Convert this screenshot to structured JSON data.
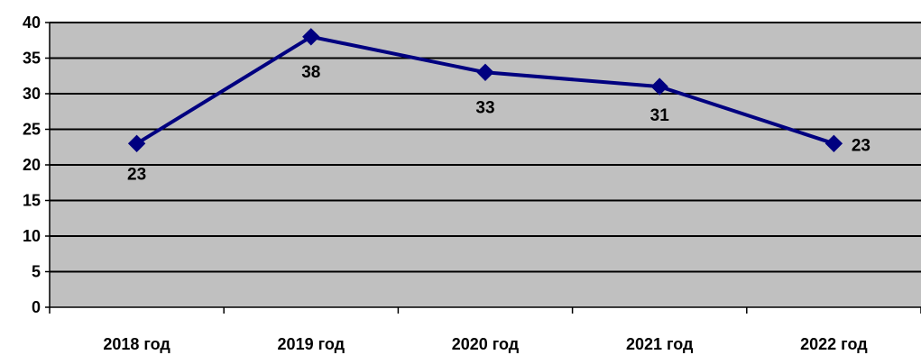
{
  "chart_data": {
    "type": "line",
    "title": "",
    "xlabel": "",
    "ylabel": "",
    "categories": [
      "2018 год",
      "2019 год",
      "2020 год",
      "2021 год",
      "2022 год"
    ],
    "series": [
      {
        "values": [
          23,
          38,
          33,
          31,
          23
        ],
        "color": "#000080",
        "marker": "diamond"
      }
    ],
    "data_labels": [
      "23",
      "38",
      "33",
      "31",
      "23"
    ],
    "ylim": [
      0,
      40
    ],
    "yticks": [
      "0",
      "5",
      "10",
      "15",
      "20",
      "25",
      "30",
      "35",
      "40"
    ],
    "grid": true,
    "legend": "none",
    "plot_background": "#c0c0c0",
    "gridline_color": "#000000"
  }
}
